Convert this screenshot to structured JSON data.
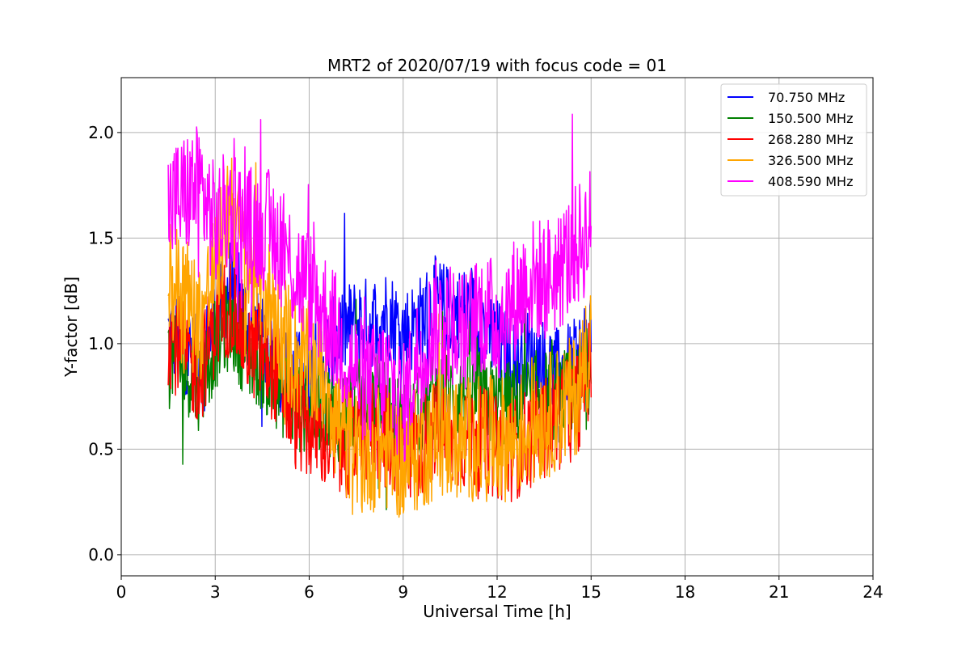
{
  "chart_data": {
    "type": "line",
    "title": "MRT2 of 2020/07/19 with focus code = 01",
    "xlabel": "Universal Time [h]",
    "ylabel": "Y-factor [dB]",
    "xlim": [
      0,
      24
    ],
    "ylim": [
      -0.1,
      2.26
    ],
    "xticks": [
      0,
      3,
      6,
      9,
      12,
      15,
      18,
      21,
      24
    ],
    "xtick_labels": [
      "0",
      "3",
      "6",
      "9",
      "12",
      "15",
      "18",
      "21",
      "24"
    ],
    "yticks": [
      0.0,
      0.5,
      1.0,
      1.5,
      2.0
    ],
    "ytick_labels": [
      "0.0",
      "0.5",
      "1.0",
      "1.5",
      "2.0"
    ],
    "grid": true,
    "legend_position": "top-right",
    "x": [
      1.5,
      2.0,
      2.5,
      3.0,
      3.5,
      4.0,
      4.5,
      5.0,
      5.5,
      6.0,
      6.5,
      7.0,
      7.5,
      8.0,
      8.5,
      9.0,
      9.5,
      10.0,
      10.5,
      11.0,
      11.5,
      12.0,
      12.5,
      13.0,
      13.5,
      14.0,
      14.5,
      15.0
    ],
    "series": [
      {
        "name": "  70.750 MHz",
        "color": "#0000ff",
        "values": [
          1.05,
          1.0,
          0.9,
          1.1,
          1.3,
          1.1,
          1.0,
          0.9,
          0.85,
          0.85,
          0.95,
          1.05,
          1.1,
          1.1,
          1.15,
          1.05,
          1.1,
          1.2,
          1.15,
          1.15,
          1.1,
          1.0,
          0.9,
          0.95,
          0.9,
          0.85,
          0.9,
          1.05
        ]
      },
      {
        "name": "150.500 MHz",
        "color": "#008000",
        "values": [
          0.95,
          0.9,
          0.8,
          1.0,
          1.1,
          0.95,
          0.9,
          0.8,
          0.7,
          0.7,
          0.7,
          0.65,
          0.7,
          0.75,
          0.7,
          0.6,
          0.65,
          0.75,
          0.75,
          0.75,
          0.75,
          0.7,
          0.7,
          0.75,
          0.75,
          0.75,
          0.75,
          0.9
        ]
      },
      {
        "name": "268.280 MHz",
        "color": "#ff0000",
        "values": [
          1.05,
          0.95,
          0.85,
          1.1,
          1.2,
          1.0,
          0.95,
          0.85,
          0.65,
          0.6,
          0.55,
          0.5,
          0.55,
          0.6,
          0.55,
          0.5,
          0.5,
          0.6,
          0.55,
          0.55,
          0.55,
          0.5,
          0.5,
          0.55,
          0.6,
          0.65,
          0.7,
          0.9
        ]
      },
      {
        "name": "326.500 MHz",
        "color": "#ffa500",
        "values": [
          1.3,
          1.25,
          1.1,
          1.35,
          1.7,
          1.35,
          1.3,
          1.1,
          0.95,
          0.9,
          0.85,
          0.6,
          0.45,
          0.5,
          0.5,
          0.45,
          0.5,
          0.55,
          0.55,
          0.55,
          0.55,
          0.55,
          0.55,
          0.6,
          0.65,
          0.7,
          0.75,
          1.05
        ]
      },
      {
        "name": "408.590 MHz",
        "color": "#ff00ff",
        "values": [
          1.65,
          1.7,
          1.75,
          1.55,
          1.65,
          1.55,
          1.55,
          1.5,
          1.35,
          1.25,
          1.15,
          1.0,
          0.85,
          0.8,
          0.85,
          0.7,
          0.95,
          1.1,
          1.1,
          1.05,
          1.15,
          1.1,
          1.2,
          1.3,
          1.3,
          1.35,
          1.45,
          1.55
        ]
      }
    ]
  }
}
